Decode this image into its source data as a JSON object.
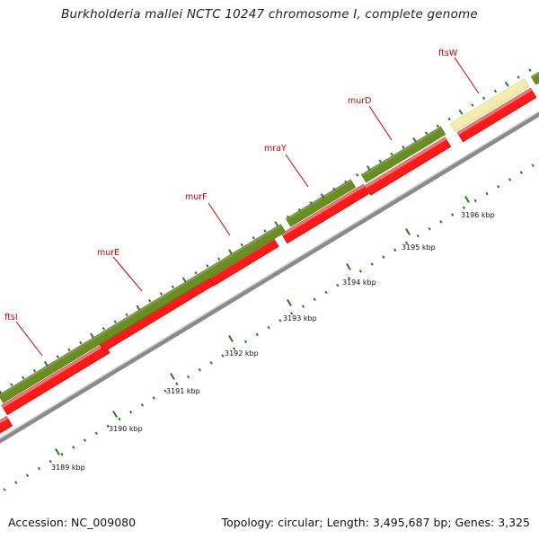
{
  "title": "Burkholderia mallei NCTC 10247 chromosome I, complete genome",
  "footer": {
    "accession": "Accession: NC_009080",
    "summary": "Topology: circular; Length: 3,495,687 bp; Genes: 3,325"
  },
  "colors": {
    "cds_red": "#ff1a1a",
    "cds_green": "#6b8e23",
    "cds_yellow": "#f3ecaa",
    "label_red": "#cc0000",
    "tick_green": "#2f7a1f",
    "backbone": "#8a8a8a"
  },
  "genes": [
    {
      "name": "ftsI",
      "color": "green"
    },
    {
      "name": "murE",
      "color": "green"
    },
    {
      "name": "murF",
      "color": "green"
    },
    {
      "name": "mraY",
      "color": "green"
    },
    {
      "name": "murD",
      "color": "green"
    },
    {
      "name": "ftsW",
      "color": "yellow"
    }
  ],
  "kbp_labels": [
    "3189 kbp",
    "3190 kbp",
    "3191 kbp",
    "3192 kbp",
    "3193 kbp",
    "3194 kbp",
    "3195 kbp",
    "3196 kbp"
  ]
}
